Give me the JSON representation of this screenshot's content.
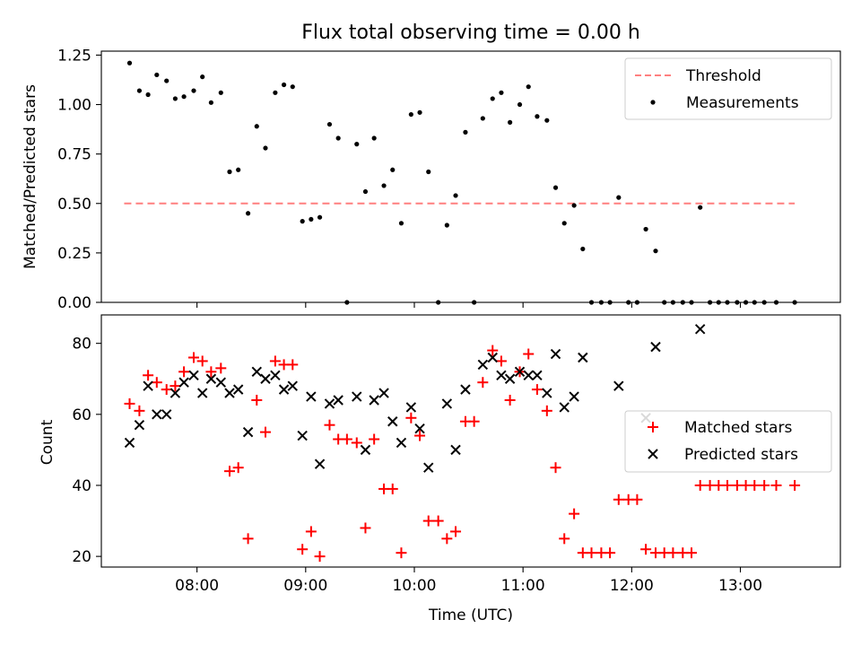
{
  "chart_data": [
    {
      "type": "scatter",
      "title": "Flux total observing time = 0.00 h",
      "ylabel": "Matched/Predicted stars",
      "xlabel": "",
      "xlim_hours": [
        7.12,
        13.92
      ],
      "ylim": [
        0,
        1.27
      ],
      "yticks": [
        0.0,
        0.25,
        0.5,
        0.75,
        1.0,
        1.25
      ],
      "ytick_labels": [
        "0.00",
        "0.25",
        "0.50",
        "0.75",
        "1.00",
        "1.25"
      ],
      "legend_position": "upper right",
      "threshold": {
        "name": "Threshold",
        "value": 0.5,
        "x_range": [
          7.33,
          13.5
        ],
        "color": "#ff7f7f"
      },
      "series": [
        {
          "name": "Measurements",
          "color": "#000000",
          "x": [
            7.38,
            7.47,
            7.55,
            7.63,
            7.72,
            7.8,
            7.88,
            7.97,
            8.05,
            8.13,
            8.22,
            8.3,
            8.38,
            8.47,
            8.55,
            8.63,
            8.72,
            8.8,
            8.88,
            8.97,
            9.05,
            9.13,
            9.22,
            9.3,
            9.38,
            9.47,
            9.55,
            9.63,
            9.72,
            9.8,
            9.88,
            9.97,
            10.05,
            10.13,
            10.22,
            10.3,
            10.38,
            10.47,
            10.55,
            10.63,
            10.72,
            10.8,
            10.88,
            10.97,
            11.05,
            11.13,
            11.22,
            11.3,
            11.38,
            11.47,
            11.55,
            11.63,
            11.72,
            11.8,
            11.88,
            11.97,
            12.05,
            12.13,
            12.22,
            12.3,
            12.38,
            12.47,
            12.55,
            12.63,
            12.72,
            12.8,
            12.88,
            12.97,
            13.05,
            13.13,
            13.22,
            13.33,
            13.5
          ],
          "y": [
            1.21,
            1.07,
            1.05,
            1.15,
            1.12,
            1.03,
            1.04,
            1.07,
            1.14,
            1.01,
            1.06,
            0.66,
            0.67,
            0.45,
            0.89,
            0.78,
            1.06,
            1.1,
            1.09,
            0.41,
            0.42,
            0.43,
            0.9,
            0.83,
            0.0,
            0.8,
            0.56,
            0.83,
            0.59,
            0.67,
            0.4,
            0.95,
            0.96,
            0.66,
            0.0,
            0.39,
            0.54,
            0.86,
            0.0,
            0.93,
            1.03,
            1.06,
            0.91,
            1.0,
            1.09,
            0.94,
            0.92,
            0.58,
            0.4,
            0.49,
            0.27,
            0.0,
            0.0,
            0.0,
            0.53,
            0.0,
            0.0,
            0.37,
            0.26,
            0.0,
            0.0,
            0.0,
            0.0,
            0.48,
            0.0,
            0.0,
            0.0,
            0.0,
            0.0,
            0.0,
            0.0,
            0.0,
            0.0
          ]
        }
      ]
    },
    {
      "type": "scatter",
      "title": "",
      "ylabel": "Count",
      "xlabel": "Time (UTC)",
      "xlim_hours": [
        7.12,
        13.92
      ],
      "ylim": [
        17,
        88
      ],
      "yticks": [
        20,
        40,
        60,
        80
      ],
      "ytick_labels": [
        "20",
        "40",
        "60",
        "80"
      ],
      "xticks_hours": [
        8,
        9,
        10,
        11,
        12,
        13
      ],
      "xtick_labels": [
        "08:00",
        "09:00",
        "10:00",
        "11:00",
        "12:00",
        "13:00"
      ],
      "legend_position": "center right",
      "series": [
        {
          "name": "Matched stars",
          "marker": "+",
          "color": "#ff0000",
          "x": [
            7.38,
            7.47,
            7.55,
            7.63,
            7.72,
            7.8,
            7.88,
            7.97,
            8.05,
            8.13,
            8.22,
            8.3,
            8.38,
            8.47,
            8.55,
            8.63,
            8.72,
            8.8,
            8.88,
            8.97,
            9.05,
            9.13,
            9.22,
            9.3,
            9.38,
            9.47,
            9.55,
            9.63,
            9.72,
            9.8,
            9.88,
            9.97,
            10.05,
            10.13,
            10.22,
            10.3,
            10.38,
            10.47,
            10.55,
            10.63,
            10.72,
            10.8,
            10.88,
            10.97,
            11.05,
            11.13,
            11.22,
            11.3,
            11.38,
            11.47,
            11.55,
            11.63,
            11.72,
            11.8,
            11.88,
            11.97,
            12.05,
            12.13,
            12.22,
            12.3,
            12.38,
            12.47,
            12.55,
            12.63,
            12.72,
            12.8,
            12.88,
            12.97,
            13.05,
            13.13,
            13.22,
            13.33,
            13.5
          ],
          "y": [
            63,
            61,
            71,
            69,
            67,
            68,
            72,
            76,
            75,
            72,
            73,
            44,
            45,
            25,
            64,
            55,
            75,
            74,
            74,
            22,
            27,
            20,
            57,
            53,
            53,
            52,
            28,
            53,
            39,
            39,
            21,
            59,
            54,
            30,
            30,
            25,
            27,
            58,
            58,
            69,
            78,
            75,
            64,
            72,
            77,
            67,
            61,
            45,
            25,
            32,
            21,
            21,
            21,
            21,
            36,
            36,
            36,
            22,
            21,
            21,
            21,
            21,
            21,
            40,
            40,
            40,
            40,
            40,
            40,
            40,
            40,
            40,
            40
          ]
        },
        {
          "name": "Predicted stars",
          "marker": "x",
          "color": "#000000",
          "x": [
            7.38,
            7.47,
            7.55,
            7.63,
            7.72,
            7.8,
            7.88,
            7.97,
            8.05,
            8.13,
            8.22,
            8.3,
            8.38,
            8.47,
            8.55,
            8.63,
            8.72,
            8.8,
            8.88,
            8.97,
            9.05,
            9.13,
            9.22,
            9.3,
            9.47,
            9.55,
            9.63,
            9.72,
            9.8,
            9.88,
            9.97,
            10.05,
            10.13,
            10.3,
            10.38,
            10.47,
            10.63,
            10.72,
            10.8,
            10.88,
            10.97,
            11.05,
            11.13,
            11.22,
            11.3,
            11.38,
            11.47,
            11.55,
            11.88,
            12.13,
            12.22,
            12.63
          ],
          "y": [
            52,
            57,
            68,
            60,
            60,
            66,
            69,
            71,
            66,
            70,
            69,
            66,
            67,
            55,
            72,
            70,
            71,
            67,
            68,
            54,
            65,
            46,
            63,
            64,
            65,
            50,
            64,
            66,
            58,
            52,
            62,
            56,
            45,
            63,
            50,
            67,
            74,
            76,
            71,
            70,
            72,
            71,
            71,
            66,
            77,
            62,
            65,
            76,
            68,
            59,
            79,
            84
          ]
        }
      ]
    }
  ]
}
